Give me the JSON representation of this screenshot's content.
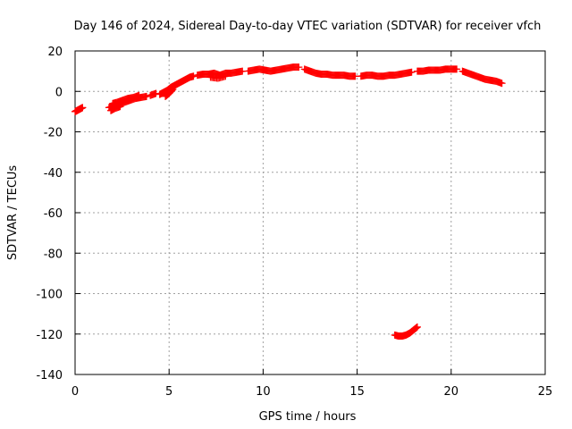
{
  "chart_data": {
    "type": "scatter",
    "title": "Day 146 of 2024, Sidereal Day-to-day VTEC variation (SDTVAR) for receiver vfch",
    "xlabel": "GPS time / hours",
    "ylabel": "SDTVAR / TECUs",
    "xlim": [
      0,
      25
    ],
    "ylim": [
      -140,
      20
    ],
    "xticks": [
      0,
      5,
      10,
      15,
      20,
      25
    ],
    "yticks": [
      -140,
      -120,
      -100,
      -80,
      -60,
      -40,
      -20,
      0,
      20
    ],
    "grid": true,
    "marker": "plus",
    "color": "#ff0000",
    "series": [
      {
        "name": "SDTVAR",
        "segments": [
          {
            "x": [
              0.0,
              0.1,
              0.2,
              0.3,
              0.4
            ],
            "y": [
              -10,
              -9.5,
              -9,
              -8.5,
              -8
            ]
          },
          {
            "x": [
              1.8,
              2.0,
              2.3,
              2.6,
              2.9,
              3.2,
              3.5,
              3.8
            ],
            "y": [
              -8,
              -7.5,
              -6.5,
              -5.5,
              -4.5,
              -3.5,
              -3,
              -2.5
            ]
          },
          {
            "x": [
              2.0,
              2.2,
              2.5,
              2.8,
              3.1,
              3.4
            ],
            "y": [
              -6,
              -5.5,
              -4.5,
              -3.5,
              -3,
              -2
            ]
          },
          {
            "x": [
              1.9,
              2.1,
              2.4
            ],
            "y": [
              -9.5,
              -8.5,
              -7.5
            ]
          },
          {
            "x": [
              4.0,
              4.3
            ],
            "y": [
              -2,
              -1
            ]
          },
          {
            "x": [
              4.5,
              4.7,
              4.9,
              5.1,
              5.3,
              5.5,
              5.7,
              5.9,
              6.1,
              6.3
            ],
            "y": [
              -1.5,
              -0.5,
              0.5,
              2,
              3,
              4,
              5,
              6,
              7,
              7.5
            ]
          },
          {
            "x": [
              4.8,
              5.0,
              5.2
            ],
            "y": [
              -2.5,
              -1,
              1
            ]
          },
          {
            "x": [
              6.5,
              6.8,
              7.1,
              7.4,
              7.7,
              8.0,
              8.3,
              8.6,
              8.9
            ],
            "y": [
              8,
              8.5,
              8.5,
              9,
              8,
              9,
              9,
              9.5,
              10
            ]
          },
          {
            "x": [
              7.2,
              7.6,
              8.0
            ],
            "y": [
              7,
              6.5,
              7.5
            ]
          },
          {
            "x": [
              9.2,
              9.5,
              9.8,
              10.1,
              10.4,
              10.7,
              11.0,
              11.3,
              11.6,
              11.9
            ],
            "y": [
              10,
              10.5,
              11,
              10.5,
              10,
              10.5,
              11,
              11.5,
              12,
              12
            ]
          },
          {
            "x": [
              12.2,
              12.5,
              12.8,
              13.1,
              13.4,
              13.7,
              14.0,
              14.3,
              14.6,
              14.9
            ],
            "y": [
              11,
              10,
              9,
              8.5,
              8.5,
              8,
              8,
              8,
              7.5,
              7.5
            ]
          },
          {
            "x": [
              15.2,
              15.5,
              15.8,
              16.1,
              16.4,
              16.7,
              17.0,
              17.3,
              17.6,
              17.9
            ],
            "y": [
              7.5,
              8,
              8,
              7.5,
              7.5,
              8,
              8,
              8.5,
              9,
              9.5
            ]
          },
          {
            "x": [
              18.2,
              18.5,
              18.8,
              19.1,
              19.4,
              19.7,
              20.0,
              20.3
            ],
            "y": [
              10,
              10,
              10.5,
              10.5,
              10.5,
              11,
              11,
              11
            ]
          },
          {
            "x": [
              20.6,
              20.9,
              21.2,
              21.5,
              21.8,
              22.1,
              22.4,
              22.7
            ],
            "y": [
              10,
              9,
              8,
              7,
              6,
              5.5,
              5,
              4
            ]
          },
          {
            "x": [
              17.0,
              17.2,
              17.4,
              17.6,
              17.8,
              18.0,
              18.2
            ],
            "y": [
              -120.5,
              -121,
              -121,
              -120.5,
              -119.5,
              -118,
              -116.5
            ]
          }
        ]
      }
    ]
  }
}
